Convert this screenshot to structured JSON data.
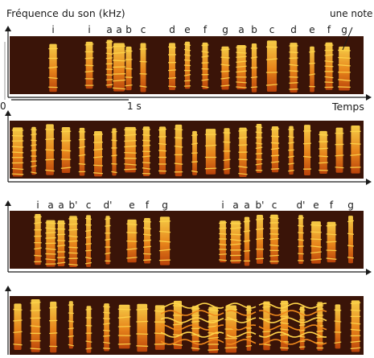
{
  "labels": {
    "y_axis": "Fréquence du son (kHz)",
    "note": "une note",
    "origin": "0",
    "scale_bar": "1 s",
    "time_axis": "Temps"
  },
  "panels": [
    {
      "id": "panel-1",
      "letters": [
        "i",
        "i",
        "a",
        "a",
        "b",
        "c",
        "d",
        "e",
        "f",
        "g",
        "a",
        "b",
        "c",
        "d",
        "e",
        "f",
        "g"
      ]
    },
    {
      "id": "panel-2",
      "letters": []
    },
    {
      "id": "panel-3",
      "letters": [
        "i",
        "a",
        "a",
        "b'",
        "c",
        "d'",
        "e",
        "f",
        "g",
        "i",
        "a",
        "a",
        "b'",
        "c",
        "d'",
        "e",
        "f",
        "g"
      ]
    },
    {
      "id": "panel-4",
      "letters": []
    }
  ],
  "colors": {
    "background": "#3a1408",
    "syllable_dark": "#c0440a",
    "syllable_mid": "#f08a1c",
    "syllable_bright": "#ffd54a"
  }
}
